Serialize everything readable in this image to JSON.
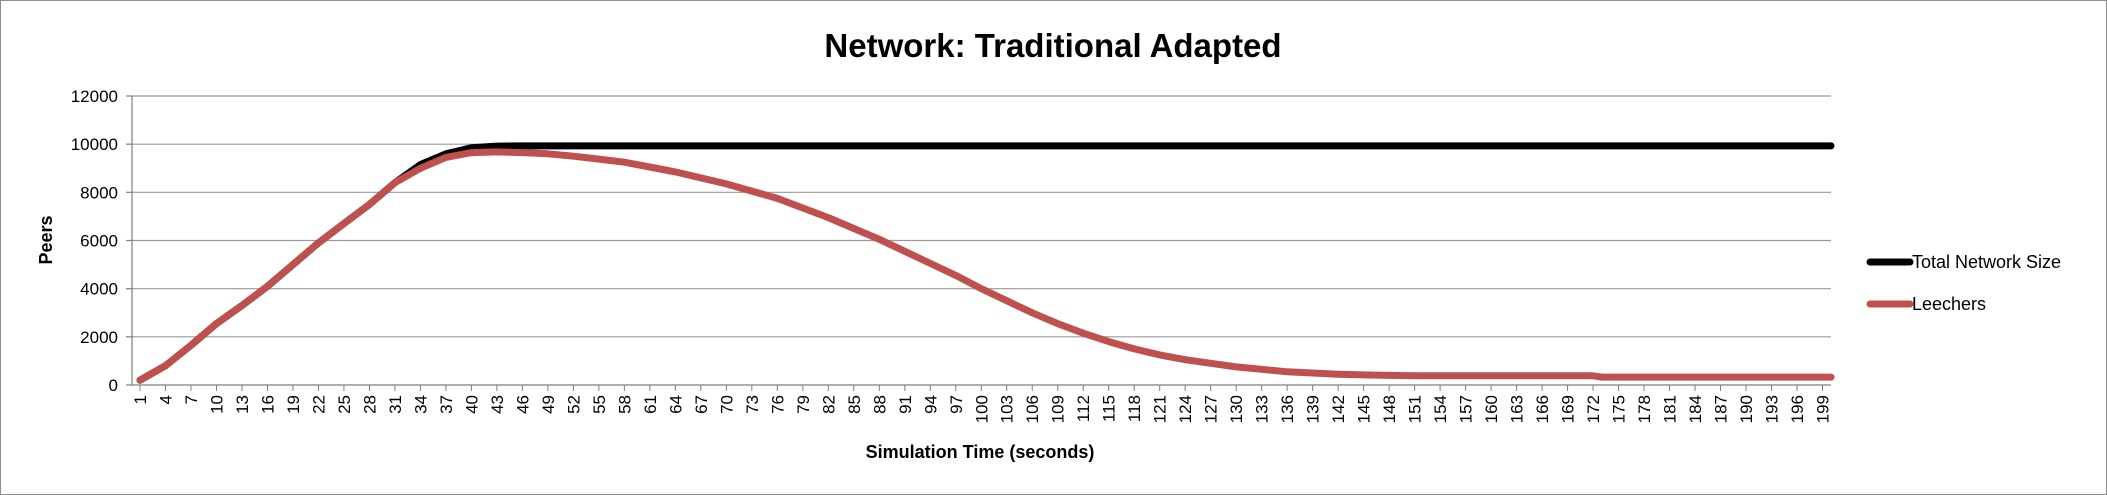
{
  "chart_data": {
    "type": "line",
    "title": "Network: Traditional Adapted",
    "xlabel": "Simulation Time (seconds)",
    "ylabel": "Peers",
    "ylim": [
      0,
      12000
    ],
    "yticks": [
      0,
      2000,
      4000,
      6000,
      8000,
      10000,
      12000
    ],
    "xlim": [
      1,
      200
    ],
    "xtick_start": 1,
    "xtick_step": 3,
    "grid": "horizontal",
    "legend": "right",
    "series": [
      {
        "name": "Total Network Size",
        "color": "#000000",
        "x": [
          1,
          4,
          7,
          10,
          13,
          16,
          19,
          22,
          25,
          28,
          31,
          34,
          37,
          40,
          43,
          46,
          49,
          55,
          70,
          100,
          130,
          160,
          200
        ],
        "y": [
          200,
          800,
          1650,
          2550,
          3300,
          4100,
          5000,
          5900,
          6700,
          7500,
          8400,
          9150,
          9600,
          9850,
          9920,
          9930,
          9930,
          9930,
          9930,
          9930,
          9930,
          9930,
          9930
        ]
      },
      {
        "name": "Leechers",
        "color": "#c0504d",
        "x": [
          1,
          4,
          7,
          10,
          13,
          16,
          19,
          22,
          25,
          28,
          31,
          34,
          37,
          40,
          43,
          46,
          49,
          52,
          55,
          58,
          61,
          64,
          67,
          70,
          73,
          76,
          79,
          82,
          85,
          88,
          91,
          94,
          97,
          100,
          103,
          106,
          109,
          112,
          115,
          118,
          121,
          124,
          127,
          130,
          133,
          136,
          139,
          142,
          145,
          148,
          151,
          160,
          172,
          173,
          185,
          200
        ],
        "y": [
          200,
          800,
          1650,
          2550,
          3300,
          4100,
          5000,
          5900,
          6700,
          7500,
          8400,
          9000,
          9450,
          9650,
          9680,
          9650,
          9600,
          9500,
          9380,
          9250,
          9050,
          8850,
          8600,
          8350,
          8050,
          7750,
          7350,
          6950,
          6500,
          6050,
          5550,
          5050,
          4550,
          4000,
          3500,
          3000,
          2550,
          2150,
          1800,
          1500,
          1250,
          1050,
          900,
          750,
          650,
          550,
          500,
          450,
          420,
          400,
          380,
          380,
          380,
          330,
          330,
          330
        ]
      }
    ]
  }
}
